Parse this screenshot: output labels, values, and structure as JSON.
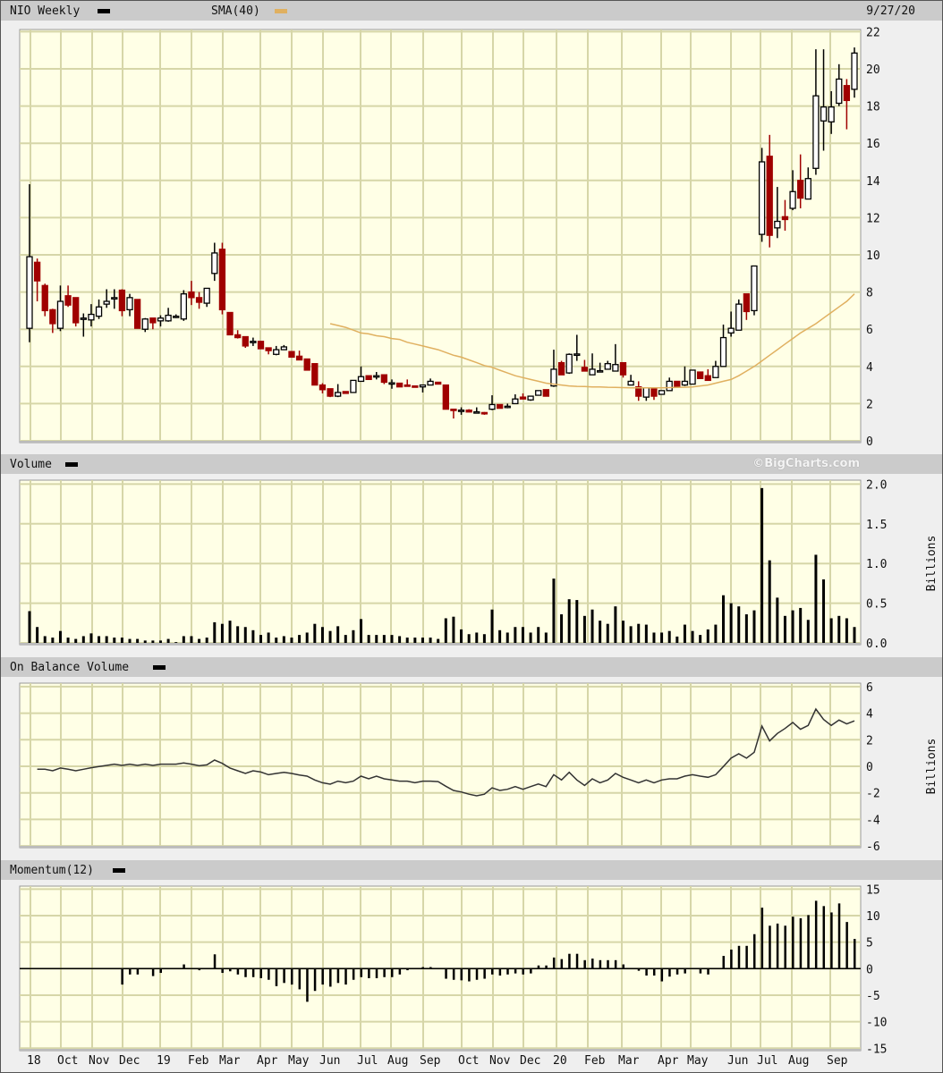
{
  "header": {
    "symbol_label": "NIO Weekly",
    "sma_label": "SMA(40)",
    "date": "9/27/20"
  },
  "volume_header": {
    "label": "Volume",
    "copyright": "©BigCharts.com"
  },
  "obv_header": {
    "label": "On Balance Volume"
  },
  "momentum_header": {
    "label": "Momentum(12)"
  },
  "colors": {
    "up": "#000000",
    "down": "#a00000",
    "sma": "#e0b060",
    "grid": "#d6d6a8",
    "plot_bg": "#ffffe6",
    "header_bg": "#cbcbcb"
  },
  "chart_data": [
    {
      "type": "candlestick",
      "title": "NIO Weekly",
      "ylim": [
        0,
        22
      ],
      "yticks": [
        0,
        2,
        4,
        6,
        8,
        10,
        12,
        14,
        16,
        18,
        20,
        22
      ],
      "grid": true,
      "x_tick_labels": [
        "18",
        "Oct",
        "Nov",
        "Dec",
        "19",
        "Feb",
        "Mar",
        "Apr",
        "May",
        "Jun",
        "Jul",
        "Aug",
        "Sep",
        "Oct",
        "Nov",
        "Dec",
        "20",
        "Feb",
        "Mar",
        "Apr",
        "May",
        "Jun",
        "Jul",
        "Aug",
        "Sep"
      ],
      "ohlc": [
        [
          6.05,
          13.8,
          5.3,
          9.9
        ],
        [
          9.6,
          9.8,
          7.5,
          8.6
        ],
        [
          8.35,
          8.45,
          6.7,
          7.0
        ],
        [
          7.05,
          7.1,
          5.8,
          6.3
        ],
        [
          6.05,
          8.35,
          5.9,
          7.5
        ],
        [
          7.8,
          8.35,
          7.2,
          7.3
        ],
        [
          7.7,
          7.7,
          6.15,
          6.35
        ],
        [
          6.55,
          6.85,
          5.6,
          6.6
        ],
        [
          6.5,
          7.35,
          6.15,
          6.8
        ],
        [
          6.7,
          7.6,
          6.55,
          7.2
        ],
        [
          7.35,
          8.15,
          7.15,
          7.5
        ],
        [
          7.65,
          8.15,
          7.1,
          7.7
        ],
        [
          8.1,
          8.15,
          6.7,
          7.0
        ],
        [
          7.05,
          7.9,
          6.7,
          7.7
        ],
        [
          7.6,
          7.6,
          6.05,
          6.05
        ],
        [
          6.0,
          6.6,
          5.85,
          6.55
        ],
        [
          6.6,
          6.6,
          6.0,
          6.35
        ],
        [
          6.45,
          6.75,
          6.15,
          6.6
        ],
        [
          6.45,
          7.15,
          6.4,
          6.75
        ],
        [
          6.65,
          6.8,
          6.6,
          6.7
        ],
        [
          6.55,
          8.1,
          6.45,
          7.9
        ],
        [
          8.0,
          8.6,
          7.3,
          7.7
        ],
        [
          7.7,
          8.0,
          7.1,
          7.45
        ],
        [
          7.4,
          8.2,
          7.2,
          8.2
        ],
        [
          9.0,
          10.65,
          8.6,
          10.1
        ],
        [
          10.3,
          10.65,
          6.8,
          7.05
        ],
        [
          6.9,
          6.9,
          5.7,
          5.7
        ],
        [
          5.7,
          5.95,
          5.5,
          5.55
        ],
        [
          5.6,
          5.6,
          5.0,
          5.1
        ],
        [
          5.3,
          5.55,
          5.1,
          5.35
        ],
        [
          5.35,
          5.35,
          4.95,
          4.95
        ],
        [
          5.0,
          5.0,
          4.65,
          4.85
        ],
        [
          4.65,
          5.1,
          4.6,
          4.9
        ],
        [
          4.9,
          5.15,
          4.9,
          5.05
        ],
        [
          4.8,
          4.8,
          4.5,
          4.5
        ],
        [
          4.55,
          4.85,
          4.35,
          4.35
        ],
        [
          4.4,
          4.4,
          3.8,
          3.8
        ],
        [
          4.15,
          4.15,
          3.0,
          3.0
        ],
        [
          3.0,
          3.1,
          2.55,
          2.75
        ],
        [
          2.8,
          2.8,
          2.35,
          2.4
        ],
        [
          2.4,
          3.05,
          2.35,
          2.6
        ],
        [
          2.65,
          2.65,
          2.55,
          2.55
        ],
        [
          2.6,
          3.25,
          2.6,
          3.25
        ],
        [
          3.2,
          4.0,
          3.2,
          3.45
        ],
        [
          3.5,
          3.5,
          3.3,
          3.3
        ],
        [
          3.45,
          3.7,
          3.3,
          3.5
        ],
        [
          3.55,
          3.55,
          3.05,
          3.15
        ],
        [
          3.1,
          3.3,
          2.8,
          3.12
        ],
        [
          3.1,
          3.1,
          2.9,
          2.9
        ],
        [
          3.0,
          3.3,
          2.95,
          2.97
        ],
        [
          2.95,
          2.95,
          2.9,
          2.9
        ],
        [
          2.9,
          3.0,
          2.6,
          3.0
        ],
        [
          3.0,
          3.35,
          3.0,
          3.2
        ],
        [
          3.15,
          3.15,
          3.05,
          3.05
        ],
        [
          3.0,
          3.0,
          1.7,
          1.7
        ],
        [
          1.7,
          1.7,
          1.2,
          1.65
        ],
        [
          1.63,
          1.8,
          1.4,
          1.65
        ],
        [
          1.65,
          1.7,
          1.55,
          1.55
        ],
        [
          1.55,
          1.8,
          1.55,
          1.56
        ],
        [
          1.52,
          1.55,
          1.4,
          1.5
        ],
        [
          1.7,
          2.45,
          1.65,
          1.95
        ],
        [
          1.95,
          1.95,
          1.75,
          1.75
        ],
        [
          1.83,
          2.0,
          1.75,
          1.86
        ],
        [
          2.0,
          2.5,
          2.0,
          2.25
        ],
        [
          2.35,
          2.55,
          2.25,
          2.25
        ],
        [
          2.2,
          2.4,
          2.15,
          2.4
        ],
        [
          2.45,
          2.7,
          2.45,
          2.7
        ],
        [
          2.75,
          2.75,
          2.4,
          2.4
        ],
        [
          2.95,
          4.9,
          2.9,
          3.85
        ],
        [
          4.2,
          4.3,
          3.55,
          3.55
        ],
        [
          3.65,
          4.7,
          3.6,
          4.65
        ],
        [
          4.63,
          5.7,
          4.3,
          4.67
        ],
        [
          3.95,
          4.35,
          3.75,
          3.75
        ],
        [
          3.55,
          4.7,
          3.55,
          3.85
        ],
        [
          3.73,
          4.2,
          3.7,
          3.77
        ],
        [
          3.85,
          4.3,
          3.85,
          4.15
        ],
        [
          3.75,
          5.2,
          3.75,
          4.1
        ],
        [
          4.2,
          4.2,
          3.4,
          3.55
        ],
        [
          3.0,
          3.55,
          3.0,
          3.2
        ],
        [
          2.9,
          3.2,
          2.15,
          2.4
        ],
        [
          2.35,
          2.85,
          2.15,
          2.85
        ],
        [
          2.8,
          2.8,
          2.2,
          2.4
        ],
        [
          2.5,
          2.7,
          2.5,
          2.7
        ],
        [
          2.7,
          3.4,
          2.7,
          3.2
        ],
        [
          3.2,
          3.2,
          2.9,
          2.9
        ],
        [
          3.0,
          4.0,
          2.95,
          3.2
        ],
        [
          3.05,
          3.8,
          3.05,
          3.8
        ],
        [
          3.7,
          3.7,
          3.35,
          3.35
        ],
        [
          3.5,
          3.85,
          3.25,
          3.25
        ],
        [
          3.4,
          4.3,
          3.4,
          4.0
        ],
        [
          4.0,
          6.25,
          4.0,
          5.55
        ],
        [
          5.8,
          6.95,
          5.6,
          6.05
        ],
        [
          5.95,
          7.6,
          5.95,
          7.35
        ],
        [
          7.9,
          7.9,
          6.5,
          6.95
        ],
        [
          7.0,
          9.4,
          6.75,
          9.4
        ],
        [
          11.1,
          15.75,
          10.7,
          15.0
        ],
        [
          15.3,
          16.45,
          10.4,
          11.05
        ],
        [
          11.45,
          13.65,
          10.9,
          11.8
        ],
        [
          12.05,
          12.95,
          11.3,
          11.9
        ],
        [
          12.5,
          14.55,
          12.4,
          13.4
        ],
        [
          14.0,
          15.4,
          12.5,
          13.05
        ],
        [
          13.0,
          14.7,
          13.0,
          14.1
        ],
        [
          14.65,
          21.05,
          14.3,
          18.55
        ],
        [
          17.2,
          21.05,
          15.6,
          17.95
        ],
        [
          17.15,
          18.8,
          16.5,
          17.95
        ],
        [
          18.15,
          20.25,
          18.0,
          19.45
        ],
        [
          19.1,
          19.45,
          16.75,
          18.3
        ],
        [
          18.9,
          21.15,
          18.45,
          20.85
        ]
      ],
      "sma40": [
        null,
        null,
        null,
        null,
        null,
        null,
        null,
        null,
        null,
        null,
        null,
        null,
        null,
        null,
        null,
        null,
        null,
        null,
        null,
        null,
        null,
        null,
        null,
        null,
        null,
        null,
        null,
        null,
        null,
        null,
        null,
        null,
        null,
        null,
        null,
        null,
        null,
        null,
        null,
        6.3,
        6.2,
        6.1,
        5.95,
        5.8,
        5.75,
        5.65,
        5.6,
        5.5,
        5.45,
        5.3,
        5.2,
        5.1,
        5.0,
        4.9,
        4.75,
        4.6,
        4.5,
        4.35,
        4.2,
        4.05,
        3.95,
        3.8,
        3.65,
        3.5,
        3.4,
        3.3,
        3.2,
        3.1,
        3.05,
        3.0,
        2.95,
        2.93,
        2.92,
        2.9,
        2.9,
        2.88,
        2.87,
        2.86,
        2.85,
        2.85,
        2.85,
        2.85,
        2.85,
        2.86,
        2.87,
        2.88,
        2.9,
        2.95,
        3.0,
        3.1,
        3.2,
        3.3,
        3.5,
        3.75,
        4.0,
        4.3,
        4.6,
        4.9,
        5.2,
        5.5,
        5.8,
        6.05,
        6.3,
        6.6,
        6.9,
        7.2,
        7.5,
        7.9
      ]
    },
    {
      "type": "bar",
      "title": "Volume",
      "ylabel": "Billions",
      "ylim": [
        0,
        2.0
      ],
      "yticks": [
        "0.0",
        "0.5",
        "1.0",
        "1.5",
        "2.0"
      ],
      "values": [
        0.4,
        0.2,
        0.085,
        0.067,
        0.15,
        0.067,
        0.05,
        0.085,
        0.12,
        0.085,
        0.085,
        0.067,
        0.067,
        0.05,
        0.05,
        0.03,
        0.03,
        0.03,
        0.05,
        0.01,
        0.085,
        0.085,
        0.05,
        0.067,
        0.26,
        0.24,
        0.28,
        0.21,
        0.2,
        0.16,
        0.1,
        0.13,
        0.067,
        0.085,
        0.067,
        0.1,
        0.13,
        0.24,
        0.2,
        0.15,
        0.21,
        0.1,
        0.16,
        0.3,
        0.1,
        0.1,
        0.1,
        0.1,
        0.085,
        0.067,
        0.067,
        0.067,
        0.067,
        0.05,
        0.31,
        0.33,
        0.17,
        0.11,
        0.13,
        0.11,
        0.42,
        0.16,
        0.13,
        0.2,
        0.2,
        0.13,
        0.2,
        0.13,
        0.81,
        0.36,
        0.55,
        0.54,
        0.34,
        0.42,
        0.28,
        0.24,
        0.46,
        0.28,
        0.21,
        0.24,
        0.23,
        0.13,
        0.13,
        0.15,
        0.08,
        0.23,
        0.15,
        0.1,
        0.17,
        0.23,
        0.6,
        0.5,
        0.46,
        0.36,
        0.41,
        1.95,
        1.04,
        0.57,
        0.34,
        0.41,
        0.44,
        0.29,
        1.11,
        0.8,
        0.31,
        0.34,
        0.31,
        0.2
      ]
    },
    {
      "type": "line",
      "title": "On Balance Volume",
      "ylabel": "Billions",
      "ylim": [
        -6,
        6
      ],
      "yticks": [
        "-6",
        "-4",
        "-2",
        "0",
        "2",
        "4",
        "6"
      ],
      "values": [
        null,
        -0.22,
        -0.22,
        -0.34,
        -0.13,
        -0.22,
        -0.34,
        -0.22,
        -0.11,
        -0.02,
        0.07,
        0.16,
        0.07,
        0.16,
        0.07,
        0.16,
        0.07,
        0.16,
        0.16,
        0.16,
        0.25,
        0.16,
        0.04,
        0.11,
        0.47,
        0.22,
        -0.13,
        -0.34,
        -0.54,
        -0.34,
        -0.43,
        -0.63,
        -0.54,
        -0.45,
        -0.54,
        -0.65,
        -0.74,
        -1.03,
        -1.24,
        -1.35,
        -1.12,
        -1.24,
        -1.12,
        -0.74,
        -0.94,
        -0.74,
        -0.94,
        -1.03,
        -1.12,
        -1.12,
        -1.24,
        -1.12,
        -1.12,
        -1.15,
        -1.5,
        -1.82,
        -1.93,
        -2.1,
        -2.22,
        -2.1,
        -1.62,
        -1.82,
        -1.73,
        -1.53,
        -1.73,
        -1.53,
        -1.33,
        -1.53,
        -0.63,
        -1.03,
        -0.45,
        -1.03,
        -1.44,
        -0.94,
        -1.24,
        -1.03,
        -0.54,
        -0.83,
        -1.03,
        -1.24,
        -1.03,
        -1.24,
        -1.03,
        -0.94,
        -0.94,
        -0.74,
        -0.63,
        -0.74,
        -0.83,
        -0.63,
        -0.02,
        0.61,
        0.94,
        0.61,
        1.06,
        3.03,
        1.91,
        2.47,
        2.85,
        3.3,
        2.79,
        3.08,
        4.31,
        3.53,
        3.08,
        3.48,
        3.19,
        3.42
      ]
    },
    {
      "type": "bar",
      "title": "Momentum(12)",
      "ylim": [
        -15,
        15
      ],
      "yticks": [
        "-15",
        "-10",
        "-5",
        "0",
        "5",
        "10",
        "15"
      ],
      "values": [
        null,
        null,
        null,
        null,
        null,
        null,
        null,
        null,
        null,
        null,
        null,
        null,
        -3.0,
        -1.1,
        -1.1,
        0,
        -1.4,
        -0.8,
        0,
        0,
        0.8,
        0,
        -0.3,
        0,
        2.7,
        -0.8,
        -0.5,
        -1.1,
        -1.6,
        -1.6,
        -1.8,
        -2.1,
        -3.3,
        -2.7,
        -3.0,
        -3.9,
        -6.25,
        -4.2,
        -3.0,
        -3.4,
        -2.7,
        -3.0,
        -2.1,
        -1.6,
        -1.8,
        -1.8,
        -1.6,
        -1.6,
        -1.1,
        -0.3,
        0,
        0.3,
        0.3,
        0,
        -1.9,
        -2.1,
        -2.2,
        -2.4,
        -2.1,
        -1.9,
        -1.1,
        -1.3,
        -1.1,
        -0.9,
        -1.1,
        -0.9,
        0.6,
        0.6,
        2.1,
        1.8,
        2.8,
        2.8,
        1.6,
        1.9,
        1.6,
        1.6,
        1.6,
        0.8,
        0,
        -0.4,
        -1.3,
        -1.3,
        -2.4,
        -1.5,
        -1.1,
        -0.9,
        0,
        -0.9,
        -1.1,
        0,
        2.4,
        3.6,
        4.3,
        4.3,
        6.5,
        11.5,
        8.1,
        8.5,
        8.1,
        9.8,
        9.5,
        10.1,
        12.8,
        11.8,
        10.6,
        12.3,
        8.8,
        5.6
      ]
    }
  ]
}
